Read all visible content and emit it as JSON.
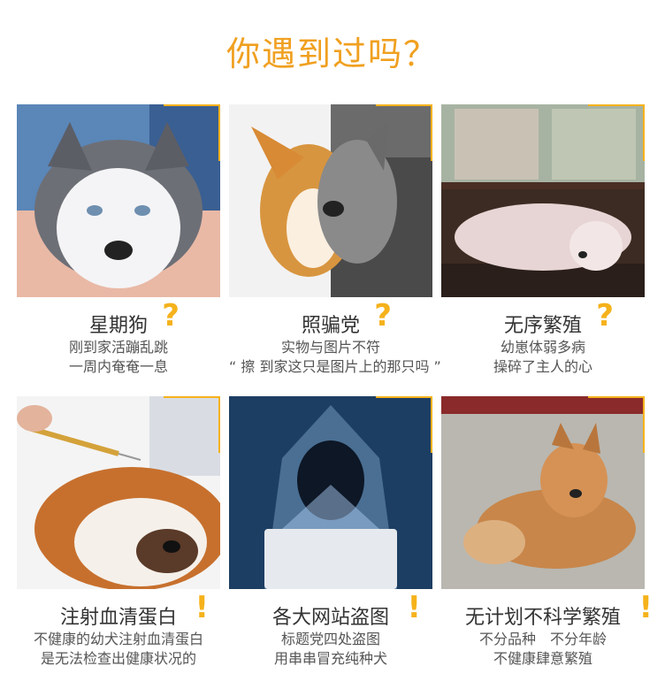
{
  "heading": "你遇到过吗？",
  "accent_color": "#f5b21b",
  "cards": [
    {
      "title": "星期狗",
      "mark": "?",
      "lines": [
        "刚到家活蹦乱跳",
        "一周内奄奄一息"
      ],
      "image": "husky-puppy-photo"
    },
    {
      "title": "照骗党",
      "mark": "?",
      "lines": [
        "实物与图片不符",
        "“ 擦 到家这只是图片上的那只吗 ”"
      ],
      "image": "corgi-comparison-photo"
    },
    {
      "title": "无序繁殖",
      "mark": "?",
      "lines": [
        "幼崽体弱多病",
        "操碎了主人的心"
      ],
      "image": "sick-dog-photo"
    },
    {
      "title": "注射血清蛋白",
      "mark": "!",
      "lines": [
        "不健康的幼犬注射血清蛋白",
        "是无法检查出健康状况的"
      ],
      "image": "pekingese-injection-photo"
    },
    {
      "title": "各大网站盗图",
      "mark": "!",
      "lines": [
        "标题党四处盗图",
        "用串串冒充纯种犬"
      ],
      "image": "hacker-laptop-photo"
    },
    {
      "title": "无计划不科学繁殖",
      "mark": "!",
      "lines": [
        "不分品种　不分年龄",
        "不健康肆意繁殖"
      ],
      "image": "pomeranian-photo"
    }
  ]
}
